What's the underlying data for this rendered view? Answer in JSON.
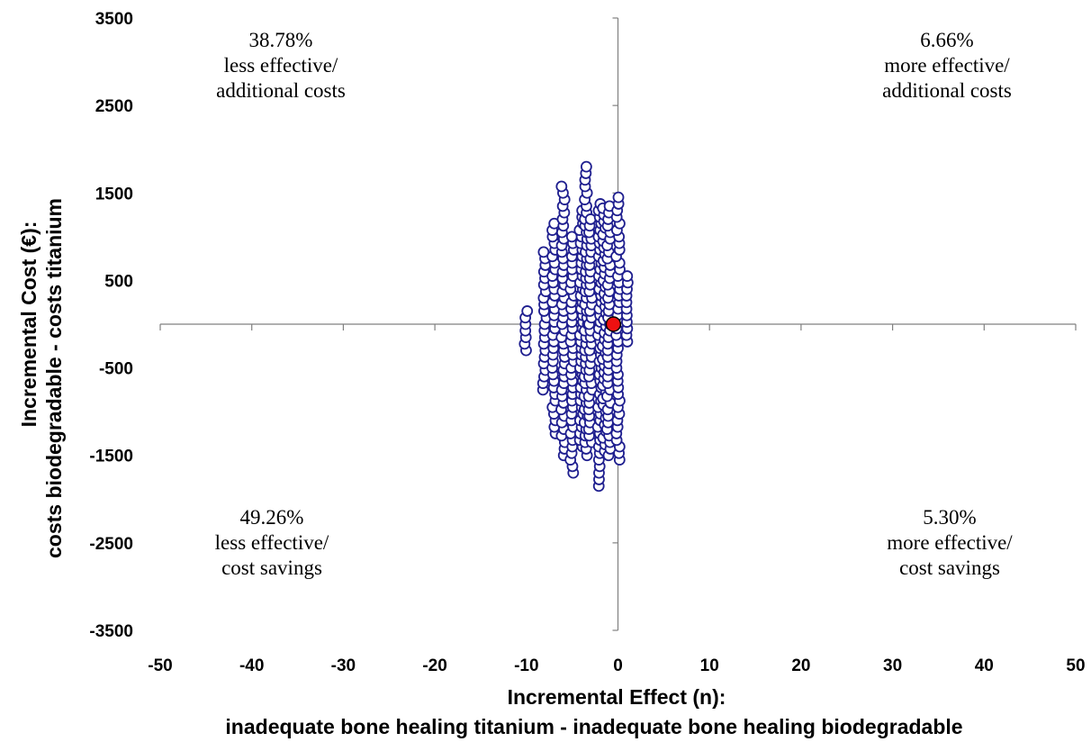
{
  "chart_data": {
    "type": "scatter",
    "xlabel": "Incremental Effect (n):",
    "xlabel2": "inadequate bone healing titanium - inadequate bone healing biodegradable",
    "ylabel": "Incremental Cost (€):",
    "ylabel2": "costs biodegradable - costs titanium",
    "xlim": [
      -50,
      50
    ],
    "ylim": [
      -3500,
      3500
    ],
    "x_ticks": [
      -50,
      -40,
      -30,
      -20,
      -10,
      0,
      10,
      20,
      30,
      40,
      50
    ],
    "y_ticks": [
      3500,
      2500,
      1500,
      500,
      -500,
      -1500,
      -2500,
      -3500
    ],
    "x_tick_labels": [
      "-50",
      "-40",
      "-30",
      "-20",
      "-10",
      "0",
      "10",
      "20",
      "30",
      "40",
      "50"
    ],
    "y_tick_labels": [
      "3500",
      "2500",
      "1500",
      "500",
      "-500",
      "-1500",
      "-2500",
      "-3500"
    ],
    "quadrants": [
      {
        "position": "top-left",
        "percent": "38.78%",
        "line1": "less effective/",
        "line2": "additional costs"
      },
      {
        "position": "top-right",
        "percent": "6.66%",
        "line1": "more effective/",
        "line2": "additional costs"
      },
      {
        "position": "bottom-left",
        "percent": "49.26%",
        "line1": "less effective/",
        "line2": "cost savings"
      },
      {
        "position": "bottom-right",
        "percent": "5.30%",
        "line1": "more effective/",
        "line2": "cost savings"
      }
    ],
    "series": [
      {
        "marker": "open-circle",
        "color": "#1f1f8f",
        "columns": [
          {
            "x": -10,
            "ymin": -300,
            "ymax": 150
          },
          {
            "x": -8,
            "ymin": -750,
            "ymax": 850
          },
          {
            "x": -7,
            "ymin": -1250,
            "ymax": 1150
          },
          {
            "x": -6,
            "ymin": -1500,
            "ymax": 1600
          },
          {
            "x": -5,
            "ymin": -1700,
            "ymax": 1050
          },
          {
            "x": -4,
            "ymin": -1400,
            "ymax": 1300
          },
          {
            "x": -3.5,
            "ymin": -1500,
            "ymax": 1800
          },
          {
            "x": -3,
            "ymin": -1350,
            "ymax": 1250
          },
          {
            "x": -2,
            "ymin": -1850,
            "ymax": 1400
          },
          {
            "x": -1.5,
            "ymin": -1450,
            "ymax": 1350
          },
          {
            "x": -1,
            "ymin": -1500,
            "ymax": 1400
          },
          {
            "x": 0,
            "ymin": -1550,
            "ymax": 1450
          },
          {
            "x": 1,
            "ymin": -200,
            "ymax": 550
          }
        ]
      },
      {
        "name": "",
        "marker": "filled-circle",
        "color": "#ee1111",
        "points": [
          {
            "x": -0.5,
            "y": 0
          }
        ]
      }
    ]
  }
}
